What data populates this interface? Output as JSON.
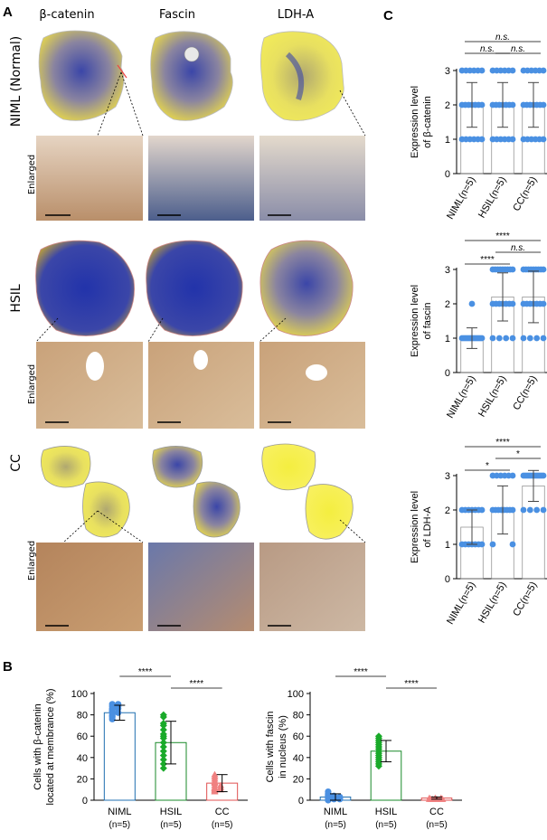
{
  "panel_labels": {
    "a": "A",
    "b": "B",
    "c": "C"
  },
  "panel_a": {
    "columns": [
      "β-catenin",
      "Fascin",
      "LDH-A"
    ],
    "rows": [
      "NIML (Normal)",
      "HSIL",
      "CC"
    ],
    "enlarged_label": "Enlarged"
  },
  "colors": {
    "stain_yellow": "#e8d84a",
    "stain_blue": "#3b46a8",
    "tissue_brown": "#c9a27a",
    "dot_blue": "#4a90e2",
    "dot_green": "#1aaa2a",
    "dot_red": "#f08080",
    "bar_blue": "#1f6fb0",
    "bar_green": "#1a8a2a",
    "bar_red": "#e05050"
  },
  "chart_data": [
    {
      "id": "c1",
      "type": "bar",
      "ylabel": "Expression level of β-catenin",
      "ylim": [
        0,
        3
      ],
      "yticks": [
        0,
        1,
        2,
        3
      ],
      "categories": [
        "NIML",
        "HSIL",
        "CC"
      ],
      "category_sub": [
        "(n=5)",
        "(n=5)",
        "(n=5)"
      ],
      "values": [
        2.0,
        2.0,
        2.0
      ],
      "errors": [
        0.65,
        0.65,
        0.65
      ],
      "points": [
        {
          "value": 3,
          "count": 6
        },
        {
          "value": 2,
          "count": 7
        },
        {
          "value": 1,
          "count": 6
        }
      ],
      "significance": [
        {
          "from": 0,
          "to": 2,
          "label": "n.s.",
          "level": 2
        },
        {
          "from": 0,
          "to": 1,
          "label": "n.s.",
          "level": 1
        },
        {
          "from": 1,
          "to": 2,
          "label": "n.s.",
          "level": 1
        }
      ]
    },
    {
      "id": "c2",
      "type": "bar",
      "ylabel": "Expression level of fascin",
      "ylim": [
        0,
        3
      ],
      "yticks": [
        0,
        1,
        2,
        3
      ],
      "categories": [
        "NIML",
        "HSIL",
        "CC"
      ],
      "category_sub": [
        "(n=5)",
        "(n=5)",
        "(n=5)"
      ],
      "values": [
        1.0,
        2.2,
        2.2
      ],
      "errors": [
        0.3,
        0.7,
        0.75
      ],
      "points_by_cat": [
        [
          {
            "value": 2,
            "count": 1
          },
          {
            "value": 1,
            "count": 12
          }
        ],
        [
          {
            "value": 3,
            "count": 9
          },
          {
            "value": 2,
            "count": 7
          },
          {
            "value": 1,
            "count": 4
          }
        ],
        [
          {
            "value": 3,
            "count": 9
          },
          {
            "value": 2,
            "count": 7
          },
          {
            "value": 1,
            "count": 4
          }
        ]
      ],
      "significance": [
        {
          "from": 0,
          "to": 2,
          "label": "****",
          "level": 2
        },
        {
          "from": 1,
          "to": 2,
          "label": "n.s.",
          "level": 1
        },
        {
          "from": 0,
          "to": 1,
          "label": "****",
          "level": 0
        }
      ]
    },
    {
      "id": "c3",
      "type": "bar",
      "ylabel": "Expression level of LDH-A",
      "ylim": [
        0,
        3
      ],
      "yticks": [
        0,
        1,
        2,
        3
      ],
      "categories": [
        "NIML",
        "HSIL",
        "CC"
      ],
      "category_sub": [
        "(n=5)",
        "(n=5)",
        "(n=5)"
      ],
      "values": [
        1.5,
        2.0,
        2.7
      ],
      "errors": [
        0.5,
        0.7,
        0.45
      ],
      "points_by_cat": [
        [
          {
            "value": 2,
            "count": 7
          },
          {
            "value": 1,
            "count": 7
          }
        ],
        [
          {
            "value": 3,
            "count": 6
          },
          {
            "value": 2,
            "count": 8
          },
          {
            "value": 1,
            "count": 2
          }
        ],
        [
          {
            "value": 3,
            "count": 12
          },
          {
            "value": 2,
            "count": 4
          }
        ]
      ],
      "significance": [
        {
          "from": 0,
          "to": 2,
          "label": "****",
          "level": 2
        },
        {
          "from": 0,
          "to": 1,
          "label": "*",
          "level": 0
        },
        {
          "from": 1,
          "to": 2,
          "label": "*",
          "level": 1
        }
      ]
    },
    {
      "id": "b1",
      "type": "bar",
      "ylabel": "Cells with β-catenin located at membrance (%)",
      "ylim": [
        0,
        100
      ],
      "yticks": [
        0,
        20,
        40,
        60,
        80,
        100
      ],
      "categories": [
        "NIML",
        "HSIL",
        "CC"
      ],
      "category_sub": [
        "(n=5)",
        "(n=5)",
        "(n=5)"
      ],
      "values": [
        82,
        54,
        16
      ],
      "errors": [
        7,
        20,
        8
      ],
      "point_values": [
        [
          88,
          90,
          86,
          84,
          83,
          82,
          80,
          78,
          76,
          90,
          88,
          85,
          79,
          82,
          86
        ],
        [
          80,
          78,
          72,
          70,
          66,
          62,
          58,
          54,
          50,
          46,
          42,
          38,
          34,
          30,
          60
        ],
        [
          22,
          20,
          18,
          16,
          14,
          12,
          10,
          9,
          8,
          24,
          14,
          12,
          17,
          11,
          10
        ]
      ],
      "significance": [
        {
          "from": 0,
          "to": 1,
          "label": "****",
          "level": 1
        },
        {
          "from": 1,
          "to": 2,
          "label": "****",
          "level": 0
        }
      ]
    },
    {
      "id": "b2",
      "type": "bar",
      "ylabel": "Cells with fascin in nucleus (%)",
      "ylim": [
        0,
        100
      ],
      "yticks": [
        0,
        20,
        40,
        60,
        80,
        100
      ],
      "categories": [
        "NIML",
        "HSIL",
        "CC"
      ],
      "category_sub": [
        "(n=5)",
        "(n=5)",
        "(n=5)"
      ],
      "values": [
        3,
        46,
        2
      ],
      "errors": [
        3,
        10,
        1
      ],
      "point_values": [
        [
          1,
          2,
          3,
          4,
          6,
          8,
          2,
          1,
          5,
          3,
          0,
          1,
          2,
          4,
          3
        ],
        [
          60,
          58,
          56,
          54,
          52,
          50,
          48,
          46,
          44,
          42,
          40,
          38,
          36,
          34,
          32
        ],
        [
          1,
          1,
          2,
          1,
          2,
          1,
          1,
          2,
          1,
          1
        ]
      ],
      "significance": [
        {
          "from": 0,
          "to": 1,
          "label": "****",
          "level": 1
        },
        {
          "from": 1,
          "to": 2,
          "label": "****",
          "level": 0
        }
      ]
    }
  ]
}
